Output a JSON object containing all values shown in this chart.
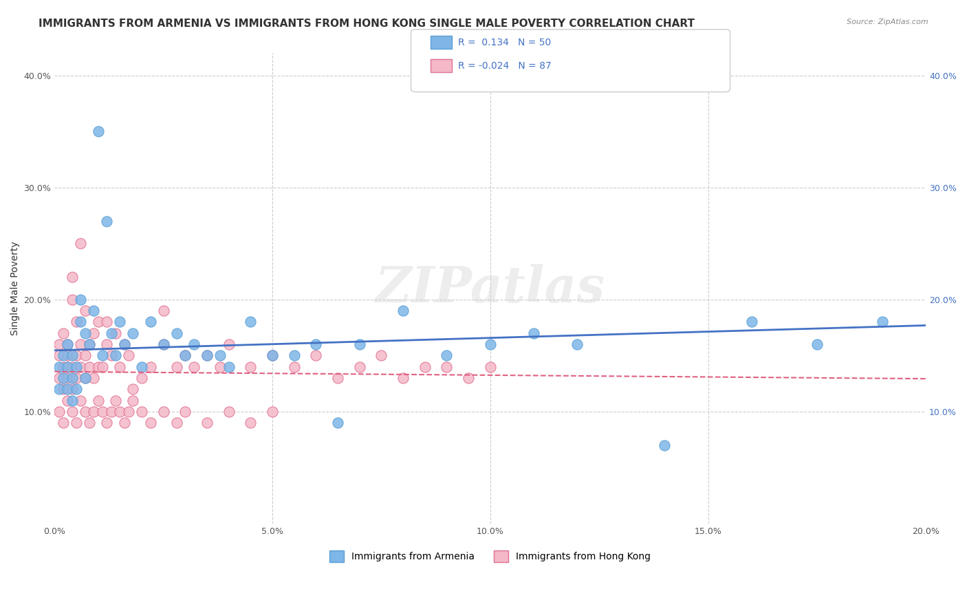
{
  "title": "IMMIGRANTS FROM ARMENIA VS IMMIGRANTS FROM HONG KONG SINGLE MALE POVERTY CORRELATION CHART",
  "source": "Source: ZipAtlas.com",
  "xlabel_bottom": "",
  "ylabel": "Single Male Poverty",
  "watermark": "ZIPatlas",
  "xlim": [
    0.0,
    0.2
  ],
  "ylim": [
    0.0,
    0.42
  ],
  "xticks": [
    0.0,
    0.05,
    0.1,
    0.15,
    0.2
  ],
  "xtick_labels": [
    "0.0%",
    "5.0%",
    "10.0%",
    "15.0%",
    "20.0%"
  ],
  "yticks": [
    0.0,
    0.1,
    0.2,
    0.3,
    0.4
  ],
  "ytick_labels": [
    "",
    "10.0%",
    "20.0%",
    "30.0%",
    "40.0%"
  ],
  "right_ytick_labels": [
    "",
    "10.0%",
    "20.0%",
    "30.0%",
    "40.0%"
  ],
  "armenia_color": "#7eb6e8",
  "armenia_edge": "#5a9fd4",
  "hongkong_color": "#f4b8c8",
  "hongkong_edge": "#e07090",
  "armenia_R": 0.134,
  "armenia_N": 50,
  "hongkong_R": -0.024,
  "hongkong_N": 87,
  "legend_label_armenia": "Immigrants from Armenia",
  "legend_label_hongkong": "Immigrants from Hong Kong",
  "armenia_x": [
    0.001,
    0.001,
    0.002,
    0.002,
    0.003,
    0.003,
    0.003,
    0.004,
    0.004,
    0.004,
    0.005,
    0.005,
    0.006,
    0.006,
    0.007,
    0.007,
    0.008,
    0.009,
    0.01,
    0.011,
    0.012,
    0.013,
    0.014,
    0.015,
    0.016,
    0.018,
    0.02,
    0.022,
    0.025,
    0.028,
    0.03,
    0.032,
    0.035,
    0.038,
    0.04,
    0.045,
    0.05,
    0.055,
    0.06,
    0.065,
    0.07,
    0.08,
    0.09,
    0.1,
    0.11,
    0.12,
    0.14,
    0.16,
    0.175,
    0.19
  ],
  "armenia_y": [
    0.12,
    0.14,
    0.13,
    0.15,
    0.12,
    0.14,
    0.16,
    0.11,
    0.13,
    0.15,
    0.12,
    0.14,
    0.2,
    0.18,
    0.13,
    0.17,
    0.16,
    0.19,
    0.35,
    0.15,
    0.27,
    0.17,
    0.15,
    0.18,
    0.16,
    0.17,
    0.14,
    0.18,
    0.16,
    0.17,
    0.15,
    0.16,
    0.15,
    0.15,
    0.14,
    0.18,
    0.15,
    0.15,
    0.16,
    0.09,
    0.16,
    0.19,
    0.15,
    0.16,
    0.17,
    0.16,
    0.07,
    0.18,
    0.16,
    0.18
  ],
  "hongkong_x": [
    0.001,
    0.001,
    0.001,
    0.002,
    0.002,
    0.002,
    0.003,
    0.003,
    0.003,
    0.003,
    0.004,
    0.004,
    0.004,
    0.004,
    0.005,
    0.005,
    0.005,
    0.006,
    0.006,
    0.006,
    0.007,
    0.007,
    0.007,
    0.008,
    0.008,
    0.009,
    0.009,
    0.01,
    0.01,
    0.011,
    0.012,
    0.012,
    0.013,
    0.014,
    0.015,
    0.016,
    0.017,
    0.018,
    0.02,
    0.022,
    0.025,
    0.025,
    0.028,
    0.03,
    0.032,
    0.035,
    0.038,
    0.04,
    0.045,
    0.05,
    0.055,
    0.06,
    0.065,
    0.07,
    0.075,
    0.08,
    0.085,
    0.09,
    0.095,
    0.1,
    0.001,
    0.002,
    0.003,
    0.004,
    0.005,
    0.006,
    0.007,
    0.008,
    0.009,
    0.01,
    0.011,
    0.012,
    0.013,
    0.014,
    0.015,
    0.016,
    0.017,
    0.018,
    0.02,
    0.022,
    0.025,
    0.028,
    0.03,
    0.035,
    0.04,
    0.045,
    0.05
  ],
  "hongkong_y": [
    0.13,
    0.15,
    0.16,
    0.14,
    0.12,
    0.17,
    0.13,
    0.15,
    0.14,
    0.16,
    0.12,
    0.14,
    0.2,
    0.22,
    0.13,
    0.15,
    0.18,
    0.14,
    0.16,
    0.25,
    0.13,
    0.15,
    0.19,
    0.14,
    0.16,
    0.13,
    0.17,
    0.14,
    0.18,
    0.14,
    0.16,
    0.18,
    0.15,
    0.17,
    0.14,
    0.16,
    0.15,
    0.12,
    0.13,
    0.14,
    0.16,
    0.19,
    0.14,
    0.15,
    0.14,
    0.15,
    0.14,
    0.16,
    0.14,
    0.15,
    0.14,
    0.15,
    0.13,
    0.14,
    0.15,
    0.13,
    0.14,
    0.14,
    0.13,
    0.14,
    0.1,
    0.09,
    0.11,
    0.1,
    0.09,
    0.11,
    0.1,
    0.09,
    0.1,
    0.11,
    0.1,
    0.09,
    0.1,
    0.11,
    0.1,
    0.09,
    0.1,
    0.11,
    0.1,
    0.09,
    0.1,
    0.09,
    0.1,
    0.09,
    0.1,
    0.09,
    0.1
  ],
  "title_fontsize": 11,
  "axis_label_fontsize": 10,
  "tick_fontsize": 9,
  "legend_fontsize": 10
}
